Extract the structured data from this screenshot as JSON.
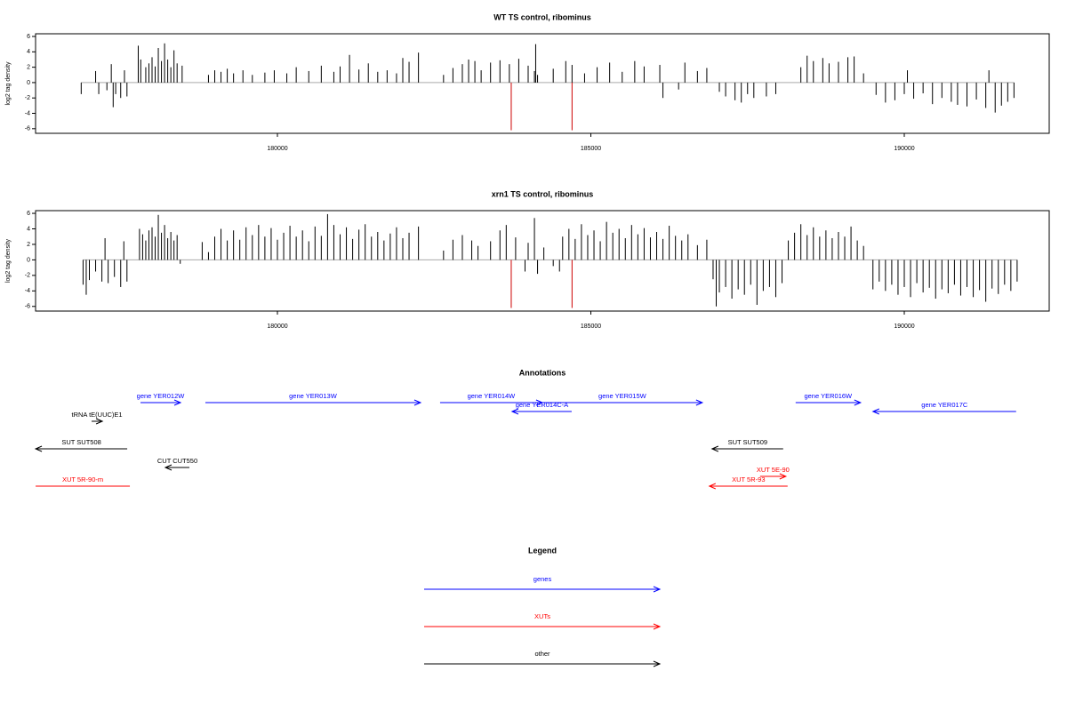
{
  "chart_data": [
    {
      "type": "bar",
      "title": "WT TS control, ribominus",
      "ylabel": "log2 tag density",
      "xlim": [
        176142,
        192312
      ],
      "ylim": [
        -6.6,
        6.35
      ],
      "xticks": [
        180000,
        185000,
        190000
      ],
      "yticks": [
        -6,
        -4,
        -2,
        0,
        2,
        4,
        6
      ],
      "series": [
        {
          "color": "#000000",
          "x": [
            176870,
            177100,
            177150,
            177280,
            177350,
            177380,
            177420,
            177500,
            177560,
            177600,
            177780,
            177820,
            177900,
            177950,
            178000,
            178050,
            178100,
            178150,
            178200,
            178250,
            178300,
            178350,
            178400,
            178480,
            178900,
            179000,
            179100,
            179200,
            179300,
            179450,
            179600,
            179800,
            179950,
            180150,
            180300,
            180500,
            180700,
            180900,
            181000,
            181150,
            181300,
            181450,
            181600,
            181750,
            181900,
            182000,
            182100,
            182250,
            182650,
            182800,
            182950,
            183050,
            183150,
            183250,
            183400,
            183550,
            183700,
            183850,
            184000,
            184100,
            184150,
            184120,
            184400,
            184600,
            184700,
            184900,
            185100,
            185300,
            185500,
            185700,
            185850,
            186100,
            186150,
            186400,
            186500,
            186700,
            186850,
            187050,
            187150,
            187300,
            187400,
            187500,
            187600,
            187800,
            187950,
            188350,
            188450,
            188550,
            188700,
            188800,
            188950,
            189100,
            189200,
            189350,
            189550,
            189700,
            189850,
            190000,
            190150,
            190300,
            190450,
            190600,
            190750,
            190850,
            191000,
            191150,
            191300,
            191450,
            191550,
            191650,
            191750,
            190050,
            191350
          ],
          "values": [
            -1.5,
            1.5,
            -1.5,
            -1,
            2.4,
            -3.2,
            -1.5,
            -2,
            1.6,
            -1.8,
            4.8,
            3,
            2,
            2.5,
            3.3,
            2.1,
            4.5,
            2.8,
            5.1,
            3,
            2,
            4.2,
            2.5,
            2.2,
            1,
            1.6,
            1.4,
            1.8,
            1.2,
            1.6,
            1,
            1.3,
            1.6,
            1.2,
            2,
            1.5,
            2.2,
            1.4,
            2.1,
            3.6,
            1.7,
            2.5,
            1.4,
            1.6,
            1.2,
            3.2,
            2.7,
            3.9,
            1,
            1.9,
            2.4,
            3,
            2.8,
            1.6,
            2.6,
            2.9,
            2.4,
            3.1,
            2.2,
            1.5,
            1,
            5,
            1.8,
            2.8,
            2.3,
            1.2,
            2,
            2.6,
            1.4,
            2.8,
            2.1,
            2.3,
            -2,
            -0.9,
            2.6,
            1.5,
            1.9,
            -1.2,
            -1.8,
            -2.3,
            -2.6,
            -1.5,
            -2,
            -1.8,
            -1.5,
            2,
            3.5,
            2.8,
            3.2,
            2.5,
            2.7,
            3.3,
            3.4,
            1.2,
            -1.6,
            -2.6,
            -2.3,
            -1.5,
            -2.1,
            -1.4,
            -2.8,
            -2,
            -2.5,
            -2.9,
            -3.1,
            -2.2,
            -3.3,
            -3.9,
            -3,
            -2.5,
            -2,
            1.6,
            1.6
          ]
        },
        {
          "color": "#cc0000",
          "x": [
            183730,
            184700
          ],
          "values": [
            -6.2,
            -6.2
          ]
        }
      ]
    },
    {
      "type": "bar",
      "title": "xrn1 TS control, ribominus",
      "ylabel": "log2 tag density",
      "xlim": [
        176142,
        192312
      ],
      "ylim": [
        -6.6,
        6.35
      ],
      "xticks": [
        180000,
        185000,
        190000
      ],
      "yticks": [
        -6,
        -4,
        -2,
        0,
        2,
        4,
        6
      ],
      "series": [
        {
          "color": "#000000",
          "x": [
            176900,
            176950,
            177000,
            177100,
            177200,
            177250,
            177300,
            177400,
            177500,
            177550,
            177600,
            177800,
            177850,
            177900,
            177950,
            178000,
            178050,
            178100,
            178150,
            178200,
            178250,
            178300,
            178350,
            178400,
            178450,
            178800,
            178900,
            179000,
            179100,
            179200,
            179300,
            179400,
            179500,
            179600,
            179700,
            179800,
            179900,
            180000,
            180100,
            180200,
            180300,
            180400,
            180500,
            180600,
            180700,
            180800,
            180900,
            181000,
            181100,
            181200,
            181300,
            181400,
            181500,
            181600,
            181700,
            181800,
            181900,
            182000,
            182100,
            182250,
            182650,
            182800,
            182950,
            183100,
            183200,
            183400,
            183550,
            183650,
            183800,
            183950,
            184000,
            184100,
            184150,
            184250,
            184400,
            184500,
            184550,
            184650,
            184750,
            184850,
            184950,
            185050,
            185150,
            185250,
            185350,
            185450,
            185550,
            185650,
            185750,
            185850,
            185950,
            186050,
            186150,
            186250,
            186350,
            186450,
            186550,
            186700,
            186850,
            186950,
            187000,
            187050,
            187150,
            187250,
            187350,
            187450,
            187550,
            187650,
            187750,
            187850,
            187950,
            188050,
            188150,
            188250,
            188350,
            188450,
            188550,
            188650,
            188750,
            188850,
            188950,
            189050,
            189150,
            189250,
            189350,
            189500,
            189600,
            189700,
            189800,
            189900,
            190000,
            190100,
            190200,
            190300,
            190400,
            190500,
            190600,
            190700,
            190800,
            190900,
            191000,
            191100,
            191200,
            191300,
            191400,
            191500,
            191600,
            191700,
            191800
          ],
          "values": [
            -3.2,
            -4.5,
            -2.6,
            -1.5,
            -2.8,
            2.8,
            -3,
            -2.2,
            -3.5,
            2.4,
            -2.8,
            4,
            3.3,
            2.5,
            3.8,
            4.2,
            3,
            5.8,
            3.5,
            4.5,
            2.8,
            3.6,
            2.5,
            3.2,
            -0.5,
            2.3,
            1,
            3,
            4,
            2.5,
            3.8,
            2.6,
            4.2,
            3.2,
            4.5,
            3,
            4.1,
            2.6,
            3.5,
            4.4,
            3,
            3.8,
            2.4,
            4.3,
            3.1,
            5.9,
            4.5,
            3.3,
            4.2,
            2.7,
            3.9,
            4.6,
            3,
            3.6,
            2.5,
            3.4,
            4.2,
            2.8,
            3.5,
            4.3,
            1.2,
            2.6,
            3.2,
            2.5,
            1.8,
            2.4,
            3.8,
            4.5,
            2.9,
            -1.5,
            2.2,
            5.4,
            -1.8,
            1.6,
            -0.8,
            -1.5,
            3,
            4,
            2.7,
            4.6,
            3.2,
            3.8,
            2.4,
            4.9,
            3.5,
            4,
            2.8,
            4.5,
            3.3,
            4.1,
            2.9,
            3.6,
            2.7,
            4.4,
            3.1,
            2.5,
            3.3,
            1.9,
            2.6,
            -2.5,
            -6,
            -4.2,
            -3.5,
            -5,
            -3.8,
            -4.5,
            -3.2,
            -5.8,
            -4,
            -3.5,
            -4.8,
            -3,
            2.5,
            3.5,
            4.6,
            3.2,
            4.2,
            3,
            3.8,
            2.8,
            3.6,
            3,
            4.3,
            2.5,
            1.8,
            -3.8,
            -2.8,
            -4,
            -3.2,
            -4.5,
            -3.5,
            -4.8,
            -3,
            -4.2,
            -3.6,
            -5,
            -3.8,
            -4.3,
            -3.2,
            -4.6,
            -3.5,
            -4.8,
            -3.9,
            -5.4,
            -3.7,
            -4.4,
            -3.2,
            -4,
            -2.8
          ]
        },
        {
          "color": "#cc0000",
          "x": [
            183730,
            184700
          ],
          "values": [
            -6.2,
            -6.2
          ]
        }
      ]
    }
  ],
  "annotations": {
    "title": "Annotations",
    "xlim": [
      176142,
      192312
    ],
    "features": [
      {
        "label": "gene YER012W",
        "start": 177816,
        "end": 178454,
        "strand": "+",
        "color": "#0000ff"
      },
      {
        "label": "gene YER013W",
        "start": 178851,
        "end": 182283,
        "strand": "+",
        "color": "#0000ff"
      },
      {
        "label": "gene YER014W",
        "start": 182595,
        "end": 184226,
        "strand": "+",
        "color": "#0000ff"
      },
      {
        "label": "gene YER014C-A",
        "start": 183744,
        "end": 184694,
        "strand": "-",
        "color": "#0000ff"
      },
      {
        "label": "gene YER015W",
        "start": 184226,
        "end": 186778,
        "strand": "+",
        "color": "#0000ff"
      },
      {
        "label": "gene YER016W",
        "start": 188267,
        "end": 189302,
        "strand": "+",
        "color": "#0000ff"
      },
      {
        "label": "gene YER017C",
        "start": 189501,
        "end": 191784,
        "strand": "-",
        "color": "#0000ff"
      },
      {
        "label": "tRNA tE(UUC)E1",
        "start": 177036,
        "end": 177207,
        "strand": "+",
        "color": "#000000"
      },
      {
        "label": "SUT SUT508",
        "start": 176143,
        "end": 177604,
        "strand": "-",
        "color": "#000000"
      },
      {
        "label": "CUT CUT550",
        "start": 178213,
        "end": 178596,
        "strand": "-",
        "color": "#000000"
      },
      {
        "label": "XUT 5R-90-m",
        "start": 176143,
        "end": 177646,
        "strand": ".",
        "color": "#ff0000"
      },
      {
        "label": "SUT SUT509",
        "start": 186934,
        "end": 188068,
        "strand": "-",
        "color": "#000000"
      },
      {
        "label": "XUT 5E-90",
        "start": 187700,
        "end": 188111,
        "strand": "+",
        "color": "#ff0000"
      },
      {
        "label": "XUT 5R-93",
        "start": 186891,
        "end": 188139,
        "strand": "-",
        "color": "#ff0000"
      }
    ]
  },
  "legend": {
    "title": "Legend",
    "entries": [
      {
        "label": "genes",
        "color": "#0000ff"
      },
      {
        "label": "XUTs",
        "color": "#ff0000"
      },
      {
        "label": "other",
        "color": "#000000"
      }
    ]
  }
}
